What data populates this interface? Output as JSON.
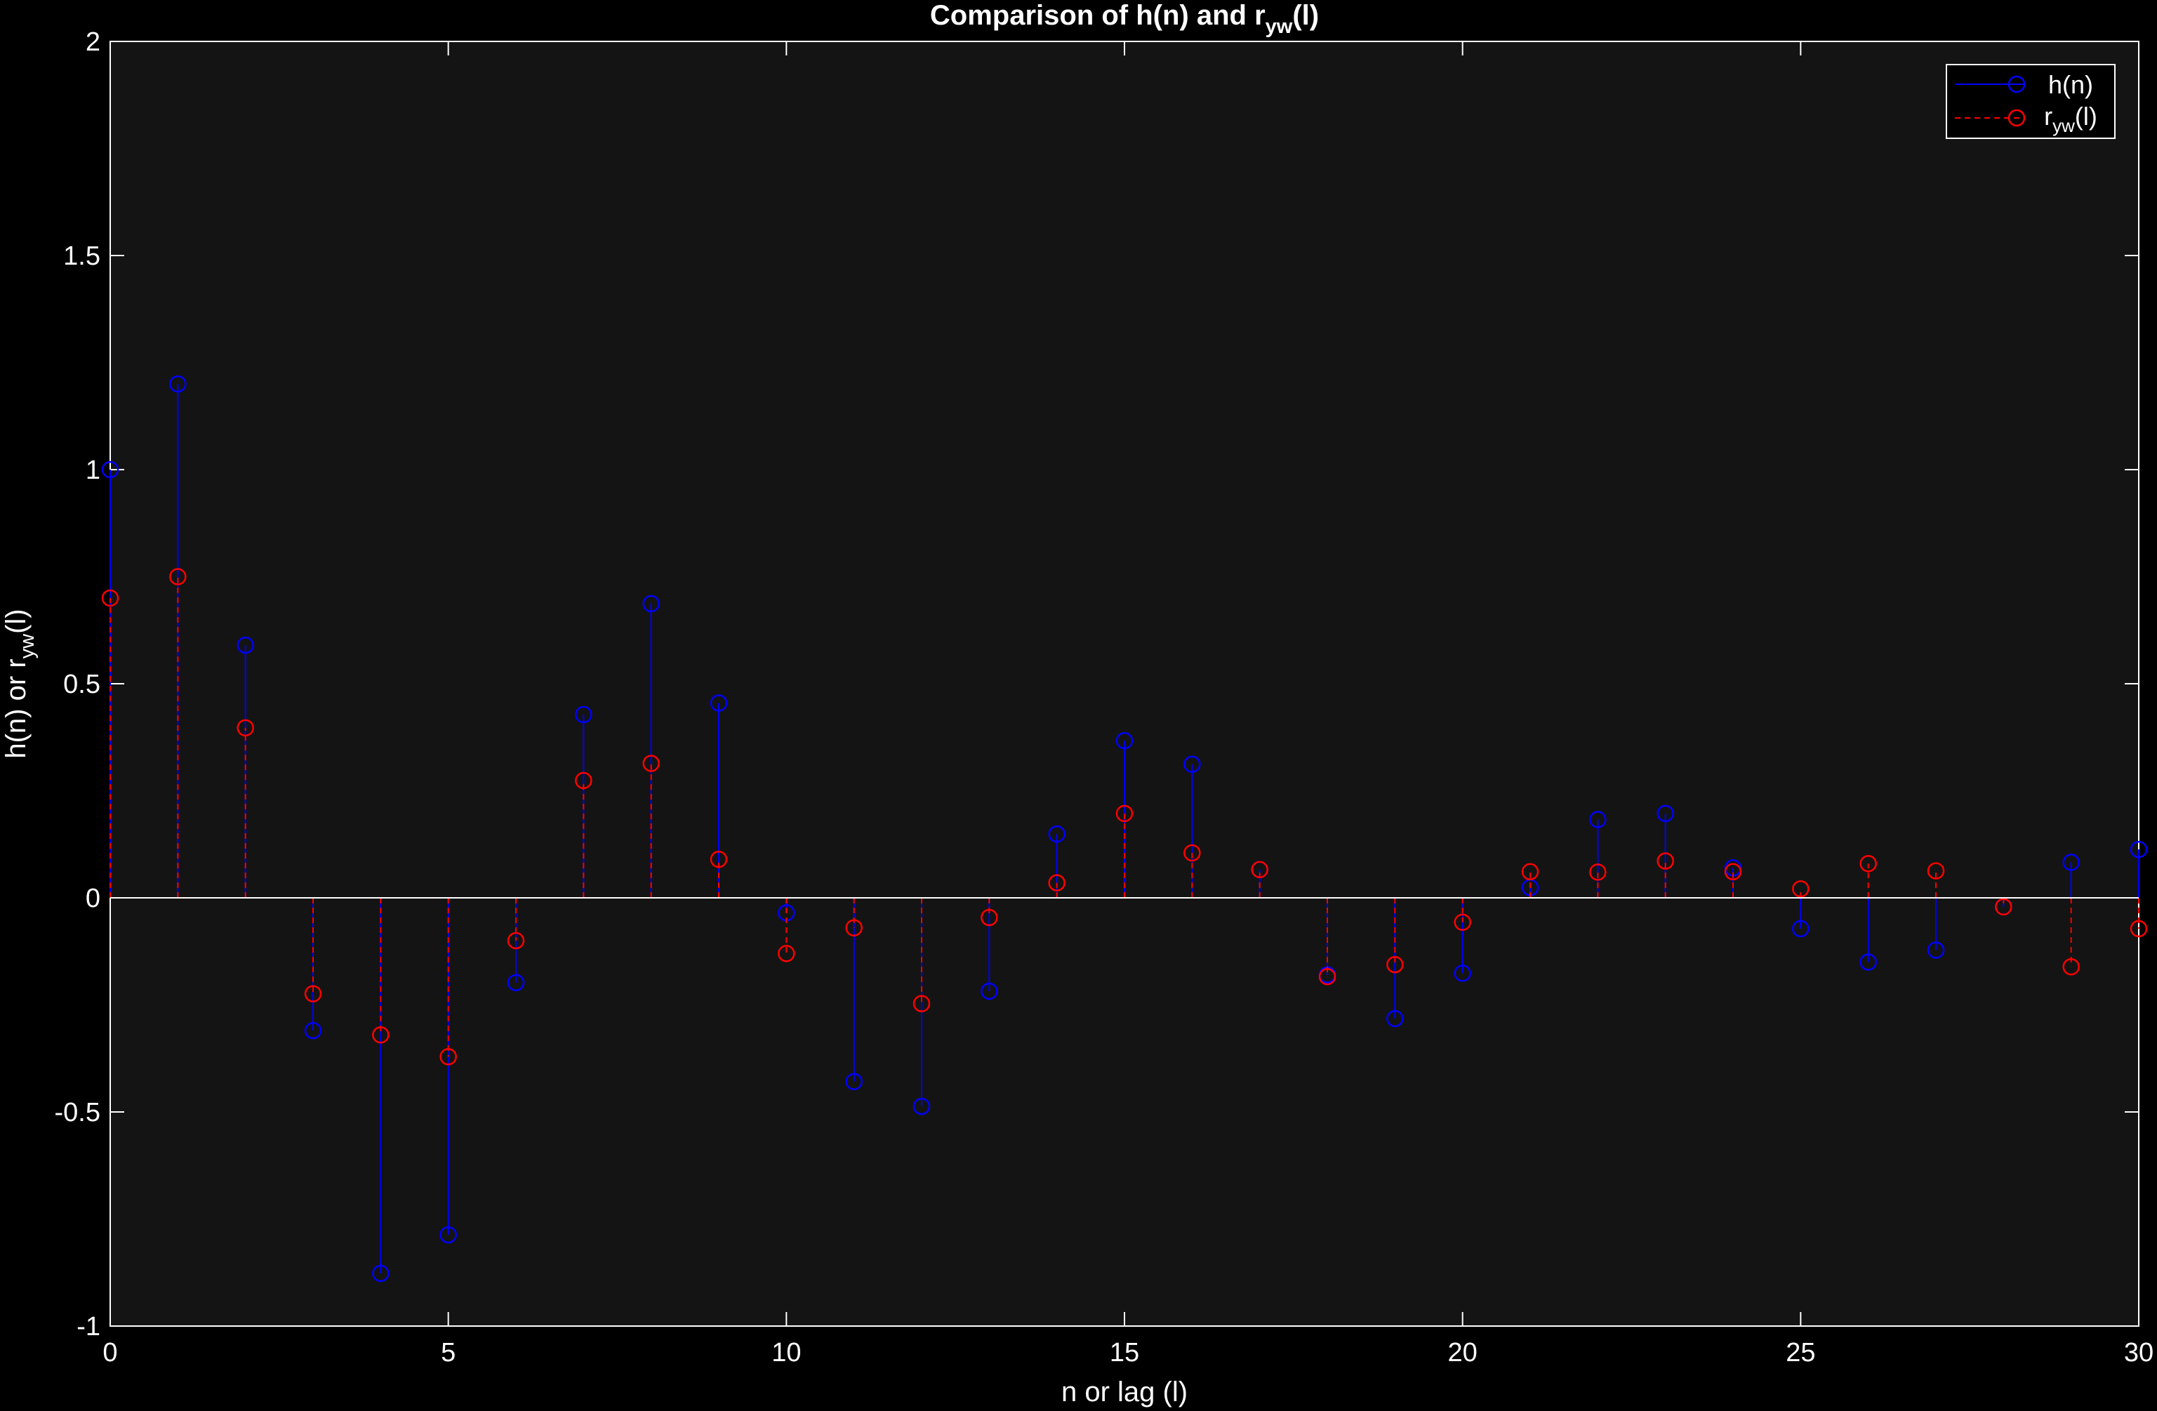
{
  "chart_data": {
    "type": "stem",
    "title": {
      "main": "Comparison  of  h(n)  and  r",
      "sub": "yw",
      "tail": "(l)"
    },
    "xlabel": "n or lag (l)",
    "ylabel": {
      "main": "h(n)  or  r",
      "sub": "yw",
      "tail": "(l)"
    },
    "xlim": [
      0,
      30
    ],
    "ylim": [
      -1,
      2
    ],
    "xticks": [
      0,
      5,
      10,
      15,
      20,
      25,
      30
    ],
    "xtick_labels": [
      "0",
      "5",
      "10",
      "15",
      "20",
      "25",
      "30"
    ],
    "yticks": [
      -1,
      -0.5,
      0,
      0.5,
      1,
      1.5,
      2
    ],
    "ytick_labels": [
      "-1",
      "-0.5",
      "0",
      "0.5",
      "1",
      "1.5",
      "2"
    ],
    "grid": false,
    "legend_position": "top-right",
    "x": [
      0,
      1,
      2,
      3,
      4,
      5,
      6,
      7,
      8,
      9,
      10,
      11,
      12,
      13,
      14,
      15,
      16,
      17,
      18,
      19,
      20,
      21,
      22,
      23,
      24,
      25,
      26,
      27,
      28,
      29,
      30
    ],
    "series": [
      {
        "name": {
          "main": "h(n)",
          "sub": "",
          "tail": ""
        },
        "color": "#0000ff",
        "line_style": "solid",
        "values": [
          1.0,
          1.2,
          0.59,
          -0.31,
          -0.877,
          -0.787,
          -0.198,
          0.428,
          0.687,
          0.455,
          -0.035,
          -0.429,
          -0.487,
          -0.218,
          0.149,
          0.367,
          0.312,
          0.066,
          -0.18,
          -0.282,
          -0.176,
          0.024,
          0.183,
          0.197,
          0.07,
          -0.072,
          -0.15,
          -0.122,
          -0.021,
          0.083,
          0.113
        ]
      },
      {
        "name": {
          "main": "r",
          "sub": "yw",
          "tail": "(l)"
        },
        "color": "#ff0000",
        "line_style": "dashed",
        "values": [
          0.7,
          0.75,
          0.397,
          -0.224,
          -0.32,
          -0.371,
          -0.1,
          0.274,
          0.314,
          0.09,
          -0.13,
          -0.07,
          -0.247,
          -0.046,
          0.035,
          0.197,
          0.105,
          0.066,
          -0.184,
          -0.156,
          -0.057,
          0.061,
          0.06,
          0.086,
          0.061,
          0.021,
          0.08,
          0.063,
          -0.021,
          -0.161,
          -0.072
        ]
      }
    ]
  }
}
